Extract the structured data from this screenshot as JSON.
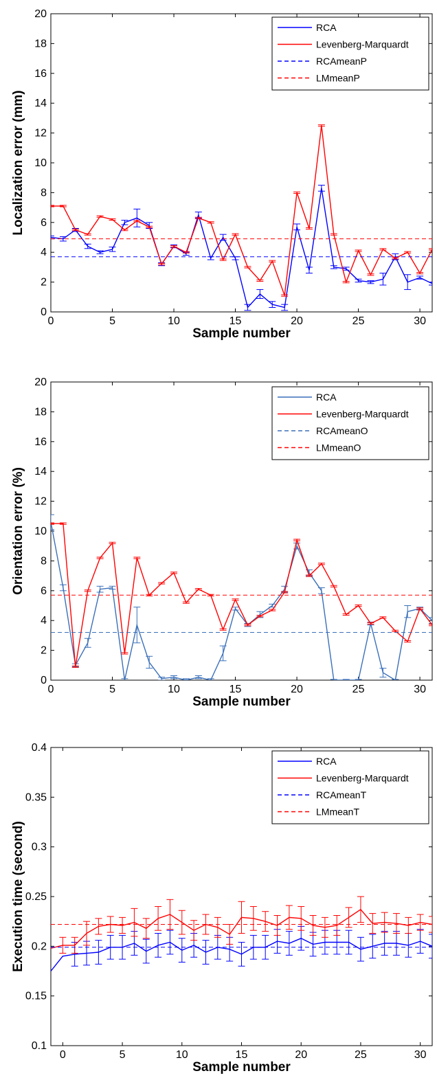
{
  "chart_data": [
    {
      "type": "line",
      "title": "",
      "xlabel": "Sample number",
      "ylabel": "Localization error (mm)",
      "xlim": [
        0,
        31
      ],
      "ylim": [
        0,
        20
      ],
      "xticks": [
        0,
        5,
        10,
        15,
        20,
        25,
        30
      ],
      "yticks": [
        0,
        2,
        4,
        6,
        8,
        10,
        12,
        14,
        16,
        18,
        20
      ],
      "legend_position": "top-right",
      "x": [
        0,
        1,
        2,
        3,
        4,
        5,
        6,
        7,
        8,
        9,
        10,
        11,
        12,
        13,
        14,
        15,
        16,
        17,
        18,
        19,
        20,
        21,
        22,
        23,
        24,
        25,
        26,
        27,
        28,
        29,
        30,
        31
      ],
      "series": [
        {
          "name": "RCA",
          "color": "#0000ff",
          "style": "solid",
          "values": [
            5.0,
            4.9,
            5.5,
            4.4,
            4.0,
            4.2,
            6.0,
            6.3,
            5.8,
            3.2,
            4.4,
            3.9,
            6.5,
            3.6,
            5.0,
            3.6,
            0.3,
            1.2,
            0.5,
            0.3,
            5.7,
            2.8,
            8.3,
            3.0,
            2.9,
            2.1,
            2.0,
            2.2,
            3.7,
            2.0,
            2.3,
            1.9
          ],
          "errors": [
            0.1,
            0.15,
            0.1,
            0.15,
            0.1,
            0.15,
            0.15,
            0.6,
            0.2,
            0.1,
            0.1,
            0.1,
            0.2,
            0.1,
            0.2,
            0.1,
            0.2,
            0.3,
            0.2,
            0.2,
            0.2,
            0.2,
            0.2,
            0.1,
            0.1,
            0.1,
            0.1,
            0.4,
            0.2,
            0.5,
            0.1,
            0.1
          ]
        },
        {
          "name": "Levenberg-Marquardt",
          "color": "#ff0000",
          "style": "solid",
          "values": [
            7.1,
            7.1,
            5.5,
            5.2,
            6.4,
            6.2,
            5.5,
            6.1,
            5.7,
            3.2,
            4.4,
            4.0,
            6.3,
            6.0,
            3.5,
            5.2,
            3.0,
            2.1,
            3.4,
            1.1,
            8.0,
            5.6,
            12.5,
            5.2,
            2.0,
            4.1,
            2.5,
            4.2,
            3.6,
            4.0,
            2.6,
            4.2
          ],
          "errors": [
            0.05,
            0.05,
            0.05,
            0.05,
            0.05,
            0.05,
            0.05,
            0.05,
            0.05,
            0.05,
            0.05,
            0.05,
            0.05,
            0.05,
            0.05,
            0.05,
            0.05,
            0.05,
            0.05,
            0.05,
            0.05,
            0.05,
            0.05,
            0.05,
            0.05,
            0.05,
            0.05,
            0.05,
            0.05,
            0.05,
            0.05,
            0.05
          ]
        },
        {
          "name": "RCAmeanP",
          "color": "#0000ff",
          "style": "dashed",
          "constant": 3.7
        },
        {
          "name": "LMmeanP",
          "color": "#ff0000",
          "style": "dashed",
          "constant": 4.9
        }
      ]
    },
    {
      "type": "line",
      "title": "",
      "xlabel": "Sample number",
      "ylabel": "Orientation error (%)",
      "xlim": [
        0,
        31
      ],
      "ylim": [
        0,
        20
      ],
      "xticks": [
        0,
        5,
        10,
        15,
        20,
        25,
        30
      ],
      "yticks": [
        0,
        2,
        4,
        6,
        8,
        10,
        12,
        14,
        16,
        18,
        20
      ],
      "legend_position": "top-right",
      "x": [
        0,
        1,
        2,
        3,
        4,
        5,
        6,
        7,
        8,
        9,
        10,
        11,
        12,
        13,
        14,
        15,
        16,
        17,
        18,
        19,
        20,
        21,
        22,
        23,
        24,
        25,
        26,
        27,
        28,
        29,
        30,
        31
      ],
      "series": [
        {
          "name": "RCA",
          "color": "#3a6fb8",
          "style": "solid",
          "values": [
            10.6,
            6.2,
            1.0,
            2.5,
            6.1,
            6.2,
            0.0,
            3.7,
            1.2,
            0.1,
            0.2,
            0.0,
            0.2,
            0.0,
            1.8,
            4.8,
            3.7,
            4.4,
            5.0,
            6.1,
            9.0,
            7.2,
            6.0,
            0.0,
            0.0,
            0.0,
            3.8,
            0.5,
            0.0,
            4.6,
            4.8,
            4.0
          ],
          "errors": [
            0.5,
            0.2,
            0.1,
            0.3,
            0.2,
            0.1,
            0.1,
            1.2,
            0.4,
            0.1,
            0.1,
            0.1,
            0.1,
            0.1,
            0.5,
            0.1,
            0.1,
            0.2,
            0.1,
            0.2,
            0.2,
            0.2,
            0.2,
            0.05,
            0.05,
            0.05,
            0.1,
            0.3,
            0.05,
            0.4,
            0.1,
            0.2
          ]
        },
        {
          "name": "Levenberg-Marquardt",
          "color": "#ff0000",
          "style": "solid",
          "values": [
            10.5,
            10.5,
            0.9,
            6.0,
            8.2,
            9.2,
            1.8,
            8.2,
            5.7,
            6.5,
            7.2,
            5.2,
            6.1,
            5.7,
            3.4,
            5.4,
            3.7,
            4.3,
            4.7,
            5.9,
            9.4,
            7.0,
            7.8,
            6.3,
            4.4,
            5.0,
            3.8,
            4.2,
            3.3,
            2.6,
            4.8,
            3.7
          ],
          "errors": [
            0.05,
            0.05,
            0.05,
            0.05,
            0.05,
            0.05,
            0.05,
            0.05,
            0.05,
            0.05,
            0.05,
            0.05,
            0.05,
            0.05,
            0.05,
            0.05,
            0.05,
            0.05,
            0.05,
            0.05,
            0.05,
            0.05,
            0.05,
            0.05,
            0.05,
            0.05,
            0.05,
            0.05,
            0.05,
            0.05,
            0.05,
            0.05
          ]
        },
        {
          "name": "RCAmeanO",
          "color": "#3a6fb8",
          "style": "dashed",
          "constant": 3.2
        },
        {
          "name": "LMmeanO",
          "color": "#ff0000",
          "style": "dashed",
          "constant": 5.7
        }
      ]
    },
    {
      "type": "line",
      "title": "",
      "xlabel": "Sample number",
      "ylabel": "Execution time (second)",
      "xlim": [
        -1,
        31
      ],
      "ylim": [
        0.1,
        0.4
      ],
      "xticks": [
        0,
        5,
        10,
        15,
        20,
        25,
        30
      ],
      "yticks": [
        0.1,
        0.15,
        0.2,
        0.25,
        0.3,
        0.35,
        0.4
      ],
      "legend_position": "top-right",
      "x": [
        -1,
        0,
        1,
        2,
        3,
        4,
        5,
        6,
        7,
        8,
        9,
        10,
        11,
        12,
        13,
        14,
        15,
        16,
        17,
        18,
        19,
        20,
        21,
        22,
        23,
        24,
        25,
        26,
        27,
        28,
        29,
        30,
        31
      ],
      "series": [
        {
          "name": "RCA",
          "color": "#0000ff",
          "style": "solid",
          "values": [
            0.175,
            0.19,
            0.192,
            0.193,
            0.194,
            0.199,
            0.199,
            0.203,
            0.195,
            0.201,
            0.204,
            0.196,
            0.201,
            0.194,
            0.199,
            0.197,
            0.192,
            0.199,
            0.199,
            0.205,
            0.203,
            0.208,
            0.202,
            0.204,
            0.204,
            0.204,
            0.197,
            0.2,
            0.203,
            0.203,
            0.201,
            0.205,
            0.2
          ],
          "errors": [
            0,
            0,
            0.012,
            0.012,
            0.012,
            0.012,
            0.012,
            0.012,
            0.012,
            0.012,
            0.012,
            0.012,
            0.012,
            0.012,
            0.012,
            0.012,
            0.012,
            0.012,
            0.012,
            0.012,
            0.012,
            0.012,
            0.012,
            0.012,
            0.012,
            0.012,
            0.012,
            0.012,
            0.012,
            0.012,
            0.012,
            0.012,
            0.012
          ]
        },
        {
          "name": "Levenberg-Marquardt",
          "color": "#ff0000",
          "style": "solid",
          "values": [
            0.198,
            0.201,
            0.201,
            0.213,
            0.22,
            0.222,
            0.221,
            0.224,
            0.218,
            0.228,
            0.232,
            0.224,
            0.216,
            0.222,
            0.219,
            0.212,
            0.229,
            0.228,
            0.225,
            0.221,
            0.229,
            0.228,
            0.221,
            0.219,
            0.221,
            0.229,
            0.237,
            0.223,
            0.224,
            0.223,
            0.221,
            0.224,
            0.222
          ],
          "errors": [
            0,
            0.008,
            0.008,
            0.012,
            0.008,
            0.008,
            0.008,
            0.014,
            0.01,
            0.012,
            0.015,
            0.012,
            0.01,
            0.01,
            0.01,
            0.01,
            0.016,
            0.012,
            0.01,
            0.01,
            0.012,
            0.012,
            0.01,
            0.01,
            0.01,
            0.01,
            0.013,
            0.01,
            0.01,
            0.01,
            0.008,
            0.008,
            0.008
          ]
        },
        {
          "name": "RCAmeanT",
          "color": "#0000ff",
          "style": "dashed",
          "constant": 0.199
        },
        {
          "name": "LMmeanT",
          "color": "#ff0000",
          "style": "dashed",
          "constant": 0.222
        }
      ]
    }
  ]
}
